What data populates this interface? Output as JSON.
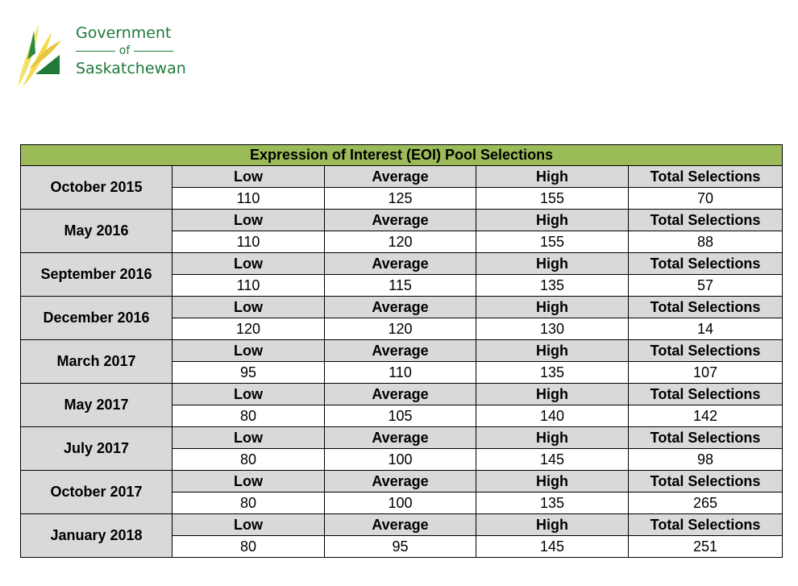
{
  "logo": {
    "line1": "Government",
    "line2": "of",
    "line3": "Saskatchewan"
  },
  "table": {
    "title": "Expression of Interest (EOI) Pool Selections",
    "headers": [
      "Low",
      "Average",
      "High",
      "Total Selections"
    ],
    "rows": [
      {
        "date": "October 2015",
        "low": "110",
        "average": "125",
        "high": "155",
        "total": "70"
      },
      {
        "date": "May 2016",
        "low": "110",
        "average": "120",
        "high": "155",
        "total": "88"
      },
      {
        "date": "September 2016",
        "low": "110",
        "average": "115",
        "high": "135",
        "total": "57"
      },
      {
        "date": "December 2016",
        "low": "120",
        "average": "120",
        "high": "130",
        "total": "14"
      },
      {
        "date": "March 2017",
        "low": "95",
        "average": "110",
        "high": "135",
        "total": "107"
      },
      {
        "date": "May 2017",
        "low": "80",
        "average": "105",
        "high": "140",
        "total": "142"
      },
      {
        "date": "July 2017",
        "low": "80",
        "average": "100",
        "high": "145",
        "total": "98"
      },
      {
        "date": "October 2017",
        "low": "80",
        "average": "100",
        "high": "135",
        "total": "265"
      },
      {
        "date": "January 2018",
        "low": "80",
        "average": "95",
        "high": "145",
        "total": "251"
      }
    ]
  }
}
